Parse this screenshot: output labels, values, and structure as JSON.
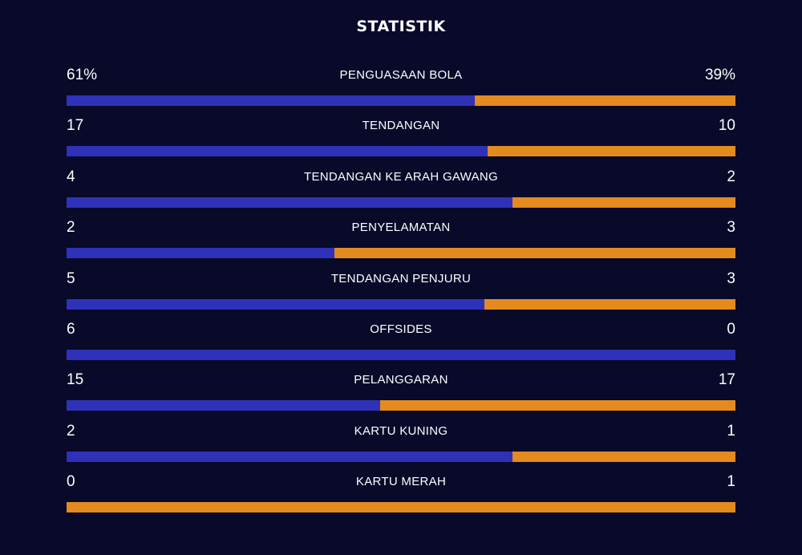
{
  "title": "STATISTIK",
  "colors": {
    "background": "#09092a",
    "home": "#2f32b8",
    "away": "#e38b1e"
  },
  "stats": [
    {
      "label": "PENGUASAAN BOLA",
      "home": "61%",
      "away": "39%",
      "home_share": 0.61
    },
    {
      "label": "TENDANGAN",
      "home": "17",
      "away": "10",
      "home_share": 0.63
    },
    {
      "label": "TENDANGAN KE ARAH GAWANG",
      "home": "4",
      "away": "2",
      "home_share": 0.667
    },
    {
      "label": "PENYELAMATAN",
      "home": "2",
      "away": "3",
      "home_share": 0.4
    },
    {
      "label": "TENDANGAN PENJURU",
      "home": "5",
      "away": "3",
      "home_share": 0.625
    },
    {
      "label": "OFFSIDES",
      "home": "6",
      "away": "0",
      "home_share": 1.0
    },
    {
      "label": "PELANGGARAN",
      "home": "15",
      "away": "17",
      "home_share": 0.469
    },
    {
      "label": "KARTU KUNING",
      "home": "2",
      "away": "1",
      "home_share": 0.667
    },
    {
      "label": "KARTU MERAH",
      "home": "0",
      "away": "1",
      "home_share": 0.0
    }
  ]
}
